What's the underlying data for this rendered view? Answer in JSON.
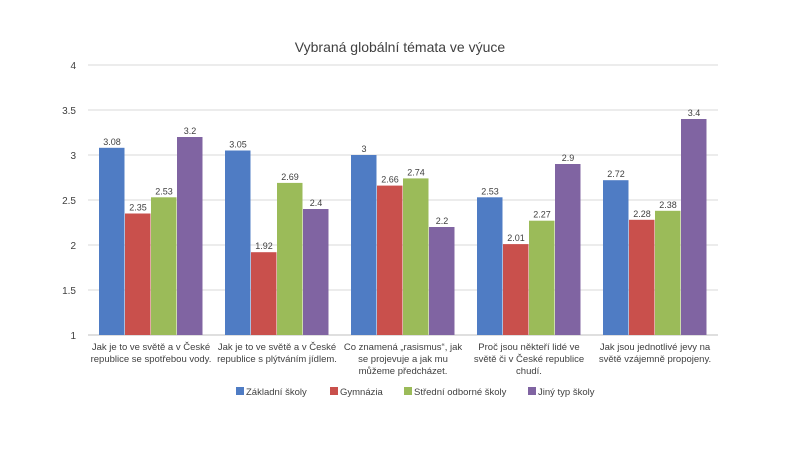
{
  "chart_data": {
    "type": "bar",
    "title": "Vybraná globální témata ve výuce",
    "xlabel": "",
    "ylabel": "",
    "ylim": [
      1,
      4
    ],
    "yticks": [
      "1",
      "1.5",
      "2",
      "2.5",
      "3",
      "3.5",
      "4"
    ],
    "ytick_values": [
      1,
      1.5,
      2,
      2.5,
      3,
      3.5,
      4
    ],
    "grid": true,
    "legend_position": "bottom",
    "categories": [
      [
        "Jak je to ve světě a v České",
        "republice se spotřebou vody."
      ],
      [
        "Jak je to ve světě a v České",
        "republice s plýtváním jídlem."
      ],
      [
        "Co znamená „rasismus“, jak",
        "se projevuje a jak mu",
        "můžeme předcházet."
      ],
      [
        "Proč jsou někteří lidé ve",
        "světě či v České republice",
        "chudí."
      ],
      [
        "Jak jsou jednotlivé jevy na",
        "světě vzájemně propojeny."
      ]
    ],
    "series": [
      {
        "name": "Základní školy",
        "color": "#4f7cc4",
        "values": [
          3.08,
          3.05,
          3,
          2.53,
          2.72
        ],
        "labels": [
          "3.08",
          "3.05",
          "3",
          "2.53",
          "2.72"
        ]
      },
      {
        "name": "Gymnázia",
        "color": "#c9504c",
        "values": [
          2.35,
          1.92,
          2.66,
          2.01,
          2.28
        ],
        "labels": [
          "2.35",
          "1.92",
          "2.66",
          "2.01",
          "2.28"
        ]
      },
      {
        "name": "Střední odborné školy",
        "color": "#9bbb59",
        "values": [
          2.53,
          2.69,
          2.74,
          2.27,
          2.38
        ],
        "labels": [
          "2.53",
          "2.69",
          "2.74",
          "2.27",
          "2.38"
        ]
      },
      {
        "name": "Jiný typ školy",
        "color": "#8064a2",
        "values": [
          3.2,
          2.4,
          2.2,
          2.9,
          3.4
        ],
        "labels": [
          "3.2",
          "2.4",
          "2.2",
          "2.9",
          "3.4"
        ]
      }
    ]
  }
}
